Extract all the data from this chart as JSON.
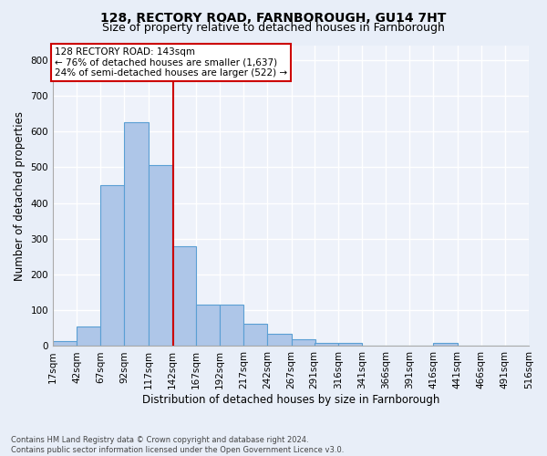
{
  "title1": "128, RECTORY ROAD, FARNBOROUGH, GU14 7HT",
  "title2": "Size of property relative to detached houses in Farnborough",
  "xlabel": "Distribution of detached houses by size in Farnborough",
  "ylabel": "Number of detached properties",
  "footnote": "Contains HM Land Registry data © Crown copyright and database right 2024.\nContains public sector information licensed under the Open Government Licence v3.0.",
  "bin_edges": [
    17,
    42,
    67,
    92,
    117,
    142,
    167,
    192,
    217,
    242,
    267,
    291,
    316,
    341,
    366,
    391,
    416,
    441,
    466,
    491,
    516
  ],
  "bar_heights": [
    13,
    55,
    450,
    625,
    505,
    280,
    115,
    115,
    62,
    35,
    20,
    10,
    10,
    0,
    0,
    0,
    8,
    0,
    0,
    0
  ],
  "bar_color": "#aec6e8",
  "bar_edge_color": "#5a9fd4",
  "property_size": 143,
  "vline_color": "#cc0000",
  "annotation_text": "128 RECTORY ROAD: 143sqm\n← 76% of detached houses are smaller (1,637)\n24% of semi-detached houses are larger (522) →",
  "annotation_box_color": "#ffffff",
  "annotation_box_edge": "#cc0000",
  "bg_color": "#e8eef8",
  "plot_bg_color": "#eef2fa",
  "ylim": [
    0,
    840
  ],
  "yticks": [
    0,
    100,
    200,
    300,
    400,
    500,
    600,
    700,
    800
  ],
  "grid_color": "#ffffff",
  "title_fontsize": 10,
  "subtitle_fontsize": 9,
  "tick_label_fontsize": 7.5,
  "axis_label_fontsize": 8.5
}
